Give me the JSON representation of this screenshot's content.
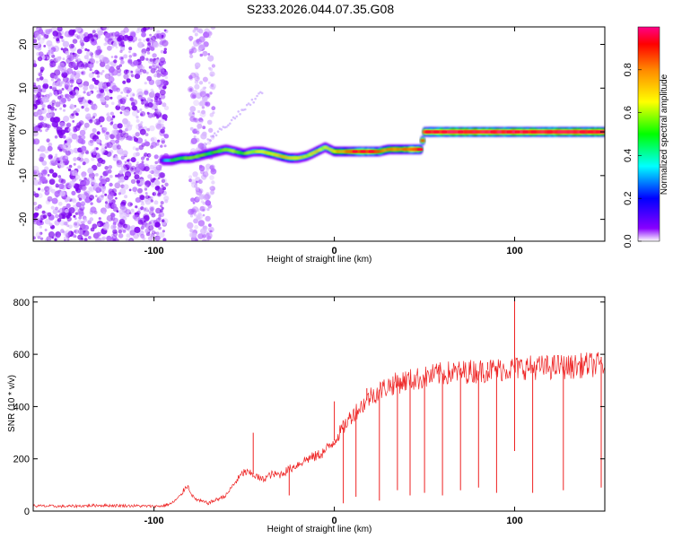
{
  "title": "S233.2026.044.07.35.G08",
  "colors": {
    "snr_line": "#ee2222",
    "frame": "#000000",
    "background": "#ffffff"
  },
  "chart_data": [
    {
      "type": "heatmap",
      "xlabel": "Height of straight line (km)",
      "ylabel": "Frequency (Hz)",
      "xlim": [
        -167,
        150
      ],
      "ylim": [
        -25,
        24
      ],
      "x_ticks": [
        -100,
        0,
        100
      ],
      "x_tick_labels": [
        "-100",
        "0",
        "100"
      ],
      "y_ticks": [
        -20,
        -10,
        0,
        10,
        20
      ],
      "y_tick_labels": [
        "-20",
        "-10",
        "0",
        "10",
        "20"
      ],
      "colorbar": {
        "label": "Normalized spectral amplitude",
        "range": [
          0,
          1
        ],
        "ticks": [
          0.0,
          0.2,
          0.4,
          0.6,
          0.8
        ],
        "tick_labels": [
          "0.0",
          "0.2",
          "0.4",
          "0.6",
          "0.8"
        ],
        "colormap": [
          "#ffffff",
          "#8800ff",
          "#0000ff",
          "#00ffff",
          "#00ff00",
          "#ffff00",
          "#ff8800",
          "#ff0000",
          "#ff0088"
        ]
      },
      "ridge": {
        "x": [
          -95,
          -90,
          -85,
          -80,
          -75,
          -70,
          -65,
          -60,
          -55,
          -50,
          -45,
          -40,
          -35,
          -30,
          -25,
          -20,
          -15,
          -10,
          -5,
          0,
          5,
          10,
          15,
          20,
          25,
          30,
          35,
          40,
          45,
          48,
          50,
          55,
          60,
          70,
          80,
          90,
          100,
          110,
          120,
          130,
          140,
          150
        ],
        "y": [
          -6.5,
          -6.5,
          -6,
          -6,
          -5.5,
          -5,
          -4.5,
          -4,
          -4.5,
          -5,
          -4.5,
          -4.5,
          -5,
          -5.5,
          -6,
          -6,
          -5.5,
          -4.5,
          -3.5,
          -4.5,
          -4.5,
          -4.5,
          -4.5,
          -4.5,
          -4.5,
          -4,
          -4,
          -4,
          -4,
          -4,
          0,
          0,
          0,
          0,
          0,
          0,
          0,
          0,
          0,
          0,
          0,
          0
        ],
        "amplitude": [
          0.3,
          0.45,
          0.5,
          0.55,
          0.55,
          0.5,
          0.5,
          0.6,
          0.55,
          0.5,
          0.6,
          0.65,
          0.65,
          0.7,
          0.7,
          0.65,
          0.6,
          0.65,
          0.6,
          0.7,
          0.75,
          0.8,
          0.85,
          0.85,
          0.8,
          0.75,
          0.75,
          0.8,
          0.85,
          0.85,
          0.9,
          0.9,
          0.95,
          0.95,
          0.95,
          0.95,
          0.95,
          0.95,
          0.95,
          0.95,
          0.95,
          0.95
        ]
      },
      "noise_regions": [
        {
          "x_range": [
            -167,
            -93
          ],
          "y_range": [
            -25,
            24
          ],
          "amplitude": 0.2
        },
        {
          "x_range": [
            -80,
            -67
          ],
          "y_range": [
            -25,
            24
          ],
          "amplitude": 0.1
        }
      ]
    },
    {
      "type": "line",
      "xlabel": "Height of straight line (km)",
      "ylabel": "SNR (10 * v/v)",
      "xlim": [
        -167,
        150
      ],
      "ylim": [
        0,
        820
      ],
      "x_ticks": [
        -100,
        0,
        100
      ],
      "x_tick_labels": [
        "-100",
        "0",
        "100"
      ],
      "y_ticks": [
        0,
        200,
        400,
        600,
        800
      ],
      "y_tick_labels": [
        "0",
        "200",
        "400",
        "600",
        "800"
      ],
      "series": [
        {
          "x": [
            -167,
            -150,
            -130,
            -110,
            -100,
            -95,
            -90,
            -85,
            -82,
            -80,
            -78,
            -75,
            -70,
            -65,
            -60,
            -55,
            -50,
            -45,
            -40,
            -35,
            -30,
            -25,
            -20,
            -15,
            -10,
            -5,
            0,
            5,
            10,
            15,
            20,
            25,
            30,
            35,
            40,
            45,
            50,
            55,
            60,
            65,
            70,
            75,
            80,
            85,
            90,
            95,
            100,
            105,
            110,
            115,
            120,
            125,
            130,
            135,
            140,
            145,
            150
          ],
          "y": [
            20,
            18,
            22,
            20,
            18,
            20,
            30,
            60,
            100,
            80,
            50,
            40,
            30,
            45,
            60,
            110,
            150,
            140,
            120,
            140,
            140,
            160,
            180,
            200,
            210,
            230,
            270,
            320,
            370,
            400,
            440,
            460,
            480,
            490,
            500,
            505,
            510,
            520,
            525,
            530,
            530,
            535,
            535,
            540,
            540,
            545,
            545,
            550,
            550,
            550,
            550,
            555,
            550,
            555,
            560,
            560,
            560
          ]
        }
      ],
      "spikes": [
        {
          "x": -45,
          "y": 300
        },
        {
          "x": 0,
          "y": 420
        },
        {
          "x": 18,
          "y": 470
        },
        {
          "x": 35,
          "y": 520
        },
        {
          "x": 58,
          "y": 560
        },
        {
          "x": 85,
          "y": 570
        },
        {
          "x": 100,
          "y": 820
        },
        {
          "x": 148,
          "y": 590
        }
      ],
      "dips": [
        {
          "x": -25,
          "y": 60
        },
        {
          "x": 5,
          "y": 30
        },
        {
          "x": 12,
          "y": 55
        },
        {
          "x": 25,
          "y": 40
        },
        {
          "x": 35,
          "y": 80
        },
        {
          "x": 42,
          "y": 60
        },
        {
          "x": 50,
          "y": 70
        },
        {
          "x": 60,
          "y": 60
        },
        {
          "x": 70,
          "y": 80
        },
        {
          "x": 80,
          "y": 90
        },
        {
          "x": 90,
          "y": 70
        },
        {
          "x": 100,
          "y": 230
        },
        {
          "x": 110,
          "y": 70
        },
        {
          "x": 127,
          "y": 80
        },
        {
          "x": 148,
          "y": 90
        }
      ]
    }
  ]
}
